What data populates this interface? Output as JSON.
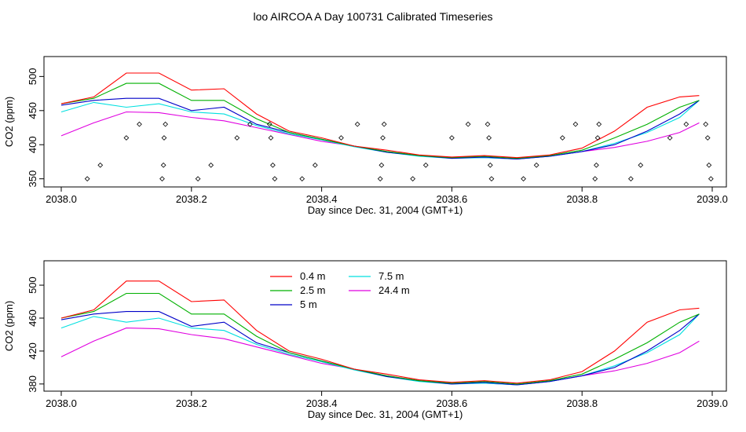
{
  "figure_title": "loo AIRCOA A  Day 100731  Calibrated Timeseries",
  "chart_data": [
    {
      "type": "line",
      "xlabel": "Day since Dec. 31, 2004 (GMT+1)",
      "ylabel": "CO2 (ppm)",
      "xlim": [
        2038.0,
        2039.0
      ],
      "ylim": [
        345,
        520
      ],
      "x_ticks": [
        2038.0,
        2038.2,
        2038.4,
        2038.6,
        2038.8,
        2039.0
      ],
      "x_tick_labels": [
        "2038.0",
        "2038.2",
        "2038.4",
        "2038.6",
        "2038.8",
        "2039.0"
      ],
      "y_ticks": [
        350,
        400,
        450,
        500
      ],
      "y_tick_labels": [
        "350",
        "400",
        "450",
        "500"
      ],
      "grid": false,
      "legend": "none",
      "markers": {
        "name": "",
        "symbol": "diamond",
        "points": [
          [
            2038.04,
            350
          ],
          [
            2038.06,
            370
          ],
          [
            2038.1,
            410
          ],
          [
            2038.12,
            430
          ],
          [
            2038.155,
            350
          ],
          [
            2038.157,
            370
          ],
          [
            2038.158,
            410
          ],
          [
            2038.16,
            430
          ],
          [
            2038.21,
            350
          ],
          [
            2038.23,
            370
          ],
          [
            2038.27,
            410
          ],
          [
            2038.29,
            430
          ],
          [
            2038.32,
            430
          ],
          [
            2038.322,
            410
          ],
          [
            2038.325,
            370
          ],
          [
            2038.328,
            350
          ],
          [
            2038.37,
            350
          ],
          [
            2038.39,
            370
          ],
          [
            2038.43,
            410
          ],
          [
            2038.455,
            430
          ],
          [
            2038.49,
            350
          ],
          [
            2038.492,
            370
          ],
          [
            2038.494,
            410
          ],
          [
            2038.496,
            430
          ],
          [
            2038.54,
            350
          ],
          [
            2038.56,
            370
          ],
          [
            2038.6,
            410
          ],
          [
            2038.625,
            430
          ],
          [
            2038.655,
            430
          ],
          [
            2038.657,
            410
          ],
          [
            2038.659,
            370
          ],
          [
            2038.661,
            350
          ],
          [
            2038.71,
            350
          ],
          [
            2038.73,
            370
          ],
          [
            2038.77,
            410
          ],
          [
            2038.79,
            430
          ],
          [
            2038.82,
            350
          ],
          [
            2038.822,
            370
          ],
          [
            2038.824,
            410
          ],
          [
            2038.826,
            430
          ],
          [
            2038.875,
            350
          ],
          [
            2038.89,
            370
          ],
          [
            2038.935,
            410
          ],
          [
            2038.96,
            430
          ],
          [
            2038.99,
            430
          ],
          [
            2038.993,
            410
          ],
          [
            2038.995,
            370
          ],
          [
            2038.998,
            350
          ]
        ]
      }
    },
    {
      "type": "line",
      "xlabel": "Day since Dec. 31, 2004 (GMT+1)",
      "ylabel": "CO2 (ppm)",
      "xlim": [
        2038.0,
        2039.0
      ],
      "ylim": [
        377,
        522
      ],
      "x_ticks": [
        2038.0,
        2038.2,
        2038.4,
        2038.6,
        2038.8,
        2039.0
      ],
      "x_tick_labels": [
        "2038.0",
        "2038.2",
        "2038.4",
        "2038.6",
        "2038.8",
        "2039.0"
      ],
      "y_ticks": [
        380,
        420,
        460,
        500
      ],
      "y_tick_labels": [
        "380",
        "420",
        "460",
        "500"
      ],
      "grid": false,
      "legend": "top-left (inside)",
      "legend_columns": 2
    }
  ],
  "series_shared": {
    "x": [
      2038.0,
      2038.05,
      2038.1,
      2038.15,
      2038.2,
      2038.25,
      2038.3,
      2038.35,
      2038.4,
      2038.45,
      2038.5,
      2038.55,
      2038.6,
      2038.65,
      2038.7,
      2038.75,
      2038.8,
      2038.85,
      2038.9,
      2038.95,
      2038.98
    ],
    "series": [
      {
        "name": "0.4 m",
        "color": "#ff0000",
        "values": [
          460,
          470,
          505,
          505,
          480,
          482,
          445,
          420,
          410,
          398,
          392,
          385,
          382,
          384,
          381,
          385,
          395,
          420,
          455,
          470,
          472
        ]
      },
      {
        "name": "2.5 m",
        "color": "#00b000",
        "values": [
          460,
          468,
          490,
          490,
          465,
          465,
          438,
          418,
          408,
          398,
          390,
          384,
          381,
          383,
          380,
          384,
          392,
          410,
          430,
          455,
          465
        ]
      },
      {
        "name": "5 m",
        "color": "#0000c8",
        "values": [
          458,
          465,
          468,
          468,
          450,
          455,
          430,
          418,
          408,
          398,
          389,
          384,
          380,
          382,
          379,
          383,
          390,
          400,
          420,
          445,
          465
        ]
      },
      {
        "name": "7.5 m",
        "color": "#00e0e0",
        "values": [
          448,
          462,
          455,
          460,
          448,
          445,
          428,
          416,
          407,
          397,
          389,
          383,
          380,
          381,
          379,
          383,
          390,
          402,
          418,
          440,
          465
        ]
      },
      {
        "name": "24.4 m",
        "color": "#e000e0",
        "values": [
          413,
          432,
          448,
          447,
          440,
          435,
          425,
          415,
          405,
          398,
          390,
          384,
          381,
          381,
          379,
          383,
          390,
          396,
          405,
          418,
          432
        ]
      }
    ]
  },
  "legend": {
    "items": [
      {
        "label": "0.4 m",
        "color": "#ff0000"
      },
      {
        "label": "2.5 m",
        "color": "#00b000"
      },
      {
        "label": "5 m",
        "color": "#0000c8"
      },
      {
        "label": "7.5 m",
        "color": "#00e0e0"
      },
      {
        "label": "24.4 m",
        "color": "#e000e0"
      }
    ]
  }
}
